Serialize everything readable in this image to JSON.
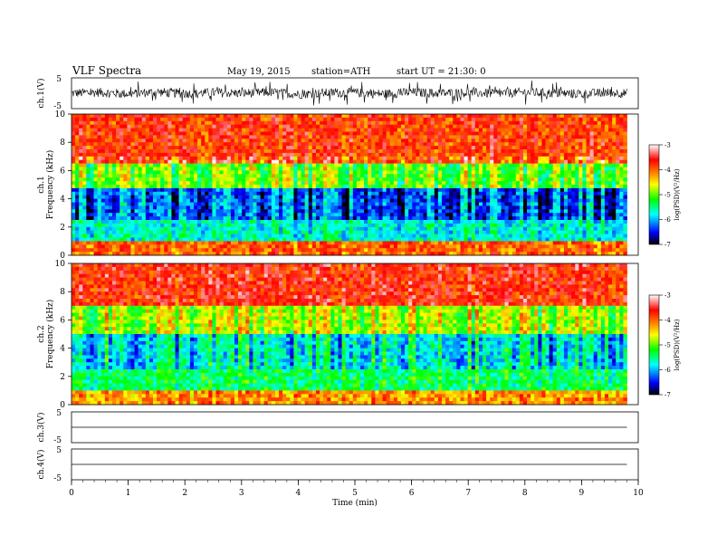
{
  "header": {
    "title": "VLF  Spectra",
    "date": "May 19, 2015",
    "station": "station=ATH",
    "start": "start  UT  =   21:30: 0"
  },
  "chart_data": [
    {
      "type": "line",
      "id": "ch1",
      "ylabel": "ch.1(V)",
      "ylim": [
        -5,
        5
      ],
      "yticks": [
        "5",
        "-5"
      ],
      "x": [
        0,
        0.5,
        1,
        1.5,
        2,
        2.5,
        3,
        3.5,
        4,
        4.5,
        5,
        5.5,
        6,
        6.5,
        7,
        7.5,
        8,
        8.5,
        9,
        9.5,
        9.8
      ],
      "values": [
        0,
        0.3,
        -0.2,
        0.4,
        -0.1,
        0.2,
        0,
        0.3,
        -0.3,
        0.1,
        0.2,
        -0.2,
        0.3,
        0,
        0.2,
        -0.1,
        0.3,
        0,
        -0.2,
        0.2,
        0
      ],
      "note_noise_amplitude": 2.5
    },
    {
      "type": "heatmap",
      "id": "ch1-spectrogram",
      "ylabel": "ch.1\nFrequency  (kHz)",
      "ylabel_line1": "ch.1",
      "ylabel_line2": "Frequency  (kHz)",
      "ylim": [
        0,
        10
      ],
      "yticks": [
        "0",
        "2",
        "4",
        "6",
        "8",
        "10"
      ],
      "colorbar": {
        "label": "log(PSD)(V²/Hz)",
        "range": [
          -7,
          -3
        ],
        "ticks": [
          "-3",
          "-4",
          "-5",
          "-6",
          "-7"
        ]
      },
      "bands_khz": [
        {
          "from": 0,
          "to": 1,
          "log_psd": -4.0
        },
        {
          "from": 1,
          "to": 2.5,
          "log_psd": -5.7
        },
        {
          "from": 2.5,
          "to": 4.8,
          "log_psd": -6.3
        },
        {
          "from": 4.8,
          "to": 6.5,
          "log_psd": -5.0
        },
        {
          "from": 6.5,
          "to": 10,
          "log_psd": -3.8
        }
      ]
    },
    {
      "type": "heatmap",
      "id": "ch2-spectrogram",
      "ylabel_line1": "ch.2",
      "ylabel_line2": "Frequency  (kHz)",
      "ylim": [
        0,
        10
      ],
      "yticks": [
        "0",
        "2",
        "4",
        "6",
        "8",
        "10"
      ],
      "colorbar": {
        "label": "log(PSD)(V²/Hz)",
        "range": [
          -7,
          -3
        ],
        "ticks": [
          "-3",
          "-4",
          "-5",
          "-6",
          "-7"
        ]
      },
      "bands_khz": [
        {
          "from": 0,
          "to": 1,
          "log_psd": -4.2
        },
        {
          "from": 1,
          "to": 2.5,
          "log_psd": -5.4
        },
        {
          "from": 2.5,
          "to": 5,
          "log_psd": -5.8
        },
        {
          "from": 5,
          "to": 7,
          "log_psd": -4.8
        },
        {
          "from": 7,
          "to": 10,
          "log_psd": -3.7
        }
      ]
    },
    {
      "type": "line",
      "id": "ch3",
      "ylabel": "ch.3(V)",
      "ylim": [
        -5,
        5
      ],
      "yticks": [
        "5",
        "-5"
      ],
      "x": [
        0,
        9.8
      ],
      "values": [
        0,
        0
      ]
    },
    {
      "type": "line",
      "id": "ch4",
      "ylabel": "ch.4(V)",
      "ylim": [
        -5,
        5
      ],
      "yticks": [
        "5",
        "-5"
      ],
      "x": [
        0,
        9.8
      ],
      "values": [
        0,
        0
      ]
    }
  ],
  "xaxis": {
    "label": "Time  (min)",
    "xlim": [
      0,
      10
    ],
    "ticks": [
      "0",
      "1",
      "2",
      "3",
      "4",
      "5",
      "6",
      "7",
      "8",
      "9",
      "10"
    ]
  },
  "colors": {
    "scale": [
      "#000000",
      "#0000ff",
      "#00ffff",
      "#00ff00",
      "#ffff00",
      "#ff8000",
      "#ff0000",
      "#ffffff"
    ]
  }
}
